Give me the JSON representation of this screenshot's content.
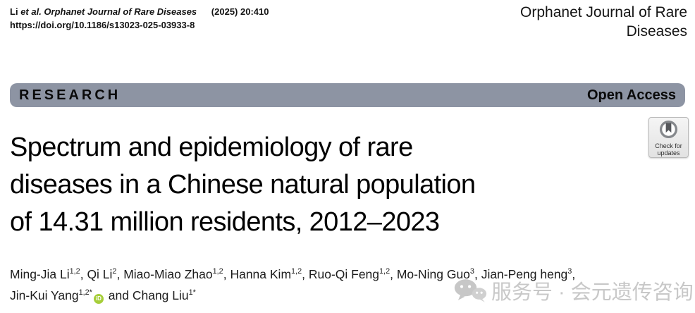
{
  "citation": {
    "author_prefix": "Li",
    "italic_part": "et al. Orphanet Journal of Rare Diseases",
    "issue": "(2025) 20:410",
    "doi": "https://doi.org/10.1186/s13023-025-03933-8"
  },
  "journal": {
    "name_line1": "Orphanet Journal of Rare",
    "name_line2": "Diseases"
  },
  "banner": {
    "section_label": "RESEARCH",
    "access_label": "Open Access",
    "bg_color": "#8D94A3"
  },
  "crossmark": {
    "line1": "Check for",
    "line2": "updates"
  },
  "article": {
    "title_lines": [
      "Spectrum and epidemiology of rare",
      "diseases in a Chinese natural population",
      "of 14.31 million residents, 2012–2023"
    ]
  },
  "authors": {
    "orcid_label": "iD",
    "orcid_color": "#A6CE39",
    "list": [
      {
        "name": "Ming-Jia Li",
        "sup": "1,2",
        "sep": ", "
      },
      {
        "name": "Qi Li",
        "sup": "2",
        "sep": ", "
      },
      {
        "name": "Miao-Miao Zhao",
        "sup": "1,2",
        "sep": ", "
      },
      {
        "name": "Hanna Kim",
        "sup": "1,2",
        "sep": ", "
      },
      {
        "name": "Ruo-Qi Feng",
        "sup": "1,2",
        "sep": ", "
      },
      {
        "name": "Mo-Ning Guo",
        "sup": "3",
        "sep": ", "
      },
      {
        "name": "Jian-Peng heng",
        "sup": "3",
        "sep": ",",
        "break": true
      },
      {
        "name": "Jin-Kui Yang",
        "sup": "1,2*",
        "orcid": true,
        "sep": " and "
      },
      {
        "name": "Chang Liu",
        "sup": "1*",
        "sep": ""
      }
    ]
  },
  "watermark": {
    "text": "服务号 · 会元遗传咨询",
    "icon": "wechat-logo",
    "color": "#c8c8c8"
  }
}
